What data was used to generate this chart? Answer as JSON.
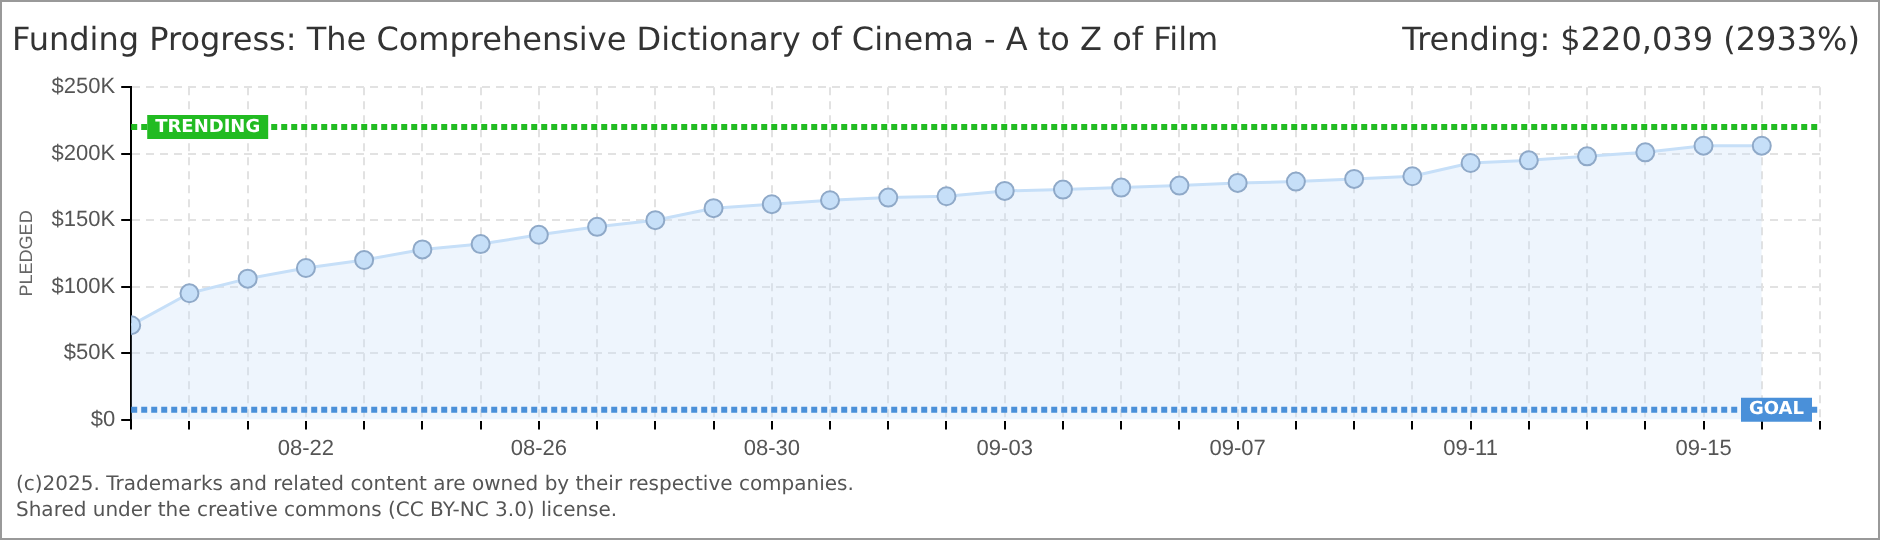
{
  "chart_data": {
    "type": "area",
    "title": "Funding Progress: The Comprehensive Dictionary of Cinema - A to Z of Film",
    "subtitle": "Trending:  $220,039 (2933%)",
    "ylabel": "PLEDGED",
    "x": [
      "2025-08-19",
      "2025-08-20",
      "2025-08-21",
      "2025-08-22",
      "2025-08-23",
      "2025-08-24",
      "2025-08-25",
      "2025-08-26",
      "2025-08-27",
      "2025-08-28",
      "2025-08-29",
      "2025-08-30",
      "2025-08-31",
      "2025-09-01",
      "2025-09-02",
      "2025-09-03",
      "2025-09-04",
      "2025-09-05",
      "2025-09-06",
      "2025-09-07",
      "2025-09-08",
      "2025-09-09",
      "2025-09-10",
      "2025-09-11",
      "2025-09-12",
      "2025-09-13",
      "2025-09-14",
      "2025-09-15",
      "2025-09-16"
    ],
    "series": [
      {
        "color": "#c6dff8",
        "values": [
          71000,
          95000,
          106000,
          114000,
          120000,
          128000,
          132000,
          139000,
          145000,
          150000,
          159000,
          162000,
          165000,
          167000,
          168000,
          172000,
          173000,
          174500,
          176000,
          178000,
          179000,
          181000,
          183000,
          193000,
          195000,
          198000,
          201000,
          206000,
          206000
        ]
      }
    ],
    "xlim": [
      "2025-08-19",
      "2025-09-17"
    ],
    "xticks": [
      {
        "value": "2025-08-19",
        "label": null
      },
      {
        "value": "2025-08-20",
        "label": null
      },
      {
        "value": "2025-08-21",
        "label": null
      },
      {
        "value": "2025-08-22",
        "label": "08-22"
      },
      {
        "value": "2025-08-23",
        "label": null
      },
      {
        "value": "2025-08-24",
        "label": null
      },
      {
        "value": "2025-08-25",
        "label": null
      },
      {
        "value": "2025-08-26",
        "label": "08-26"
      },
      {
        "value": "2025-08-27",
        "label": null
      },
      {
        "value": "2025-08-28",
        "label": null
      },
      {
        "value": "2025-08-29",
        "label": null
      },
      {
        "value": "2025-08-30",
        "label": "08-30"
      },
      {
        "value": "2025-08-31",
        "label": null
      },
      {
        "value": "2025-09-01",
        "label": null
      },
      {
        "value": "2025-09-02",
        "label": null
      },
      {
        "value": "2025-09-03",
        "label": "09-03"
      },
      {
        "value": "2025-09-04",
        "label": null
      },
      {
        "value": "2025-09-05",
        "label": null
      },
      {
        "value": "2025-09-06",
        "label": null
      },
      {
        "value": "2025-09-07",
        "label": "09-07"
      },
      {
        "value": "2025-09-08",
        "label": null
      },
      {
        "value": "2025-09-09",
        "label": null
      },
      {
        "value": "2025-09-10",
        "label": null
      },
      {
        "value": "2025-09-11",
        "label": "09-11"
      },
      {
        "value": "2025-09-12",
        "label": null
      },
      {
        "value": "2025-09-13",
        "label": null
      },
      {
        "value": "2025-09-14",
        "label": null
      },
      {
        "value": "2025-09-15",
        "label": "09-15"
      },
      {
        "value": "2025-09-16",
        "label": null
      },
      {
        "value": "2025-09-17",
        "label": null
      }
    ],
    "ylim": [
      0,
      250000
    ],
    "yticks": [
      {
        "value": 0,
        "label": "$0"
      },
      {
        "value": 50000,
        "label": "$50K"
      },
      {
        "value": 100000,
        "label": "$100K"
      },
      {
        "value": 150000,
        "label": "$150K"
      },
      {
        "value": 200000,
        "label": "$200K"
      },
      {
        "value": 250000,
        "label": "$250K"
      }
    ],
    "ref_lines": [
      {
        "axis": "y",
        "value": 220039,
        "label": "TRENDING",
        "color": "#22bb22",
        "line_style": "dotted"
      },
      {
        "axis": "y",
        "value": 7500,
        "label": "GOAL",
        "color": "#4a90d9",
        "line_style": "dotted"
      }
    ],
    "grid": true,
    "marker": "circle",
    "legend": false,
    "annotations": [
      "(c)2025. Trademarks and related content are owned by their respective companies.",
      "Shared under the creative commons (CC BY-NC 3.0) license."
    ]
  }
}
